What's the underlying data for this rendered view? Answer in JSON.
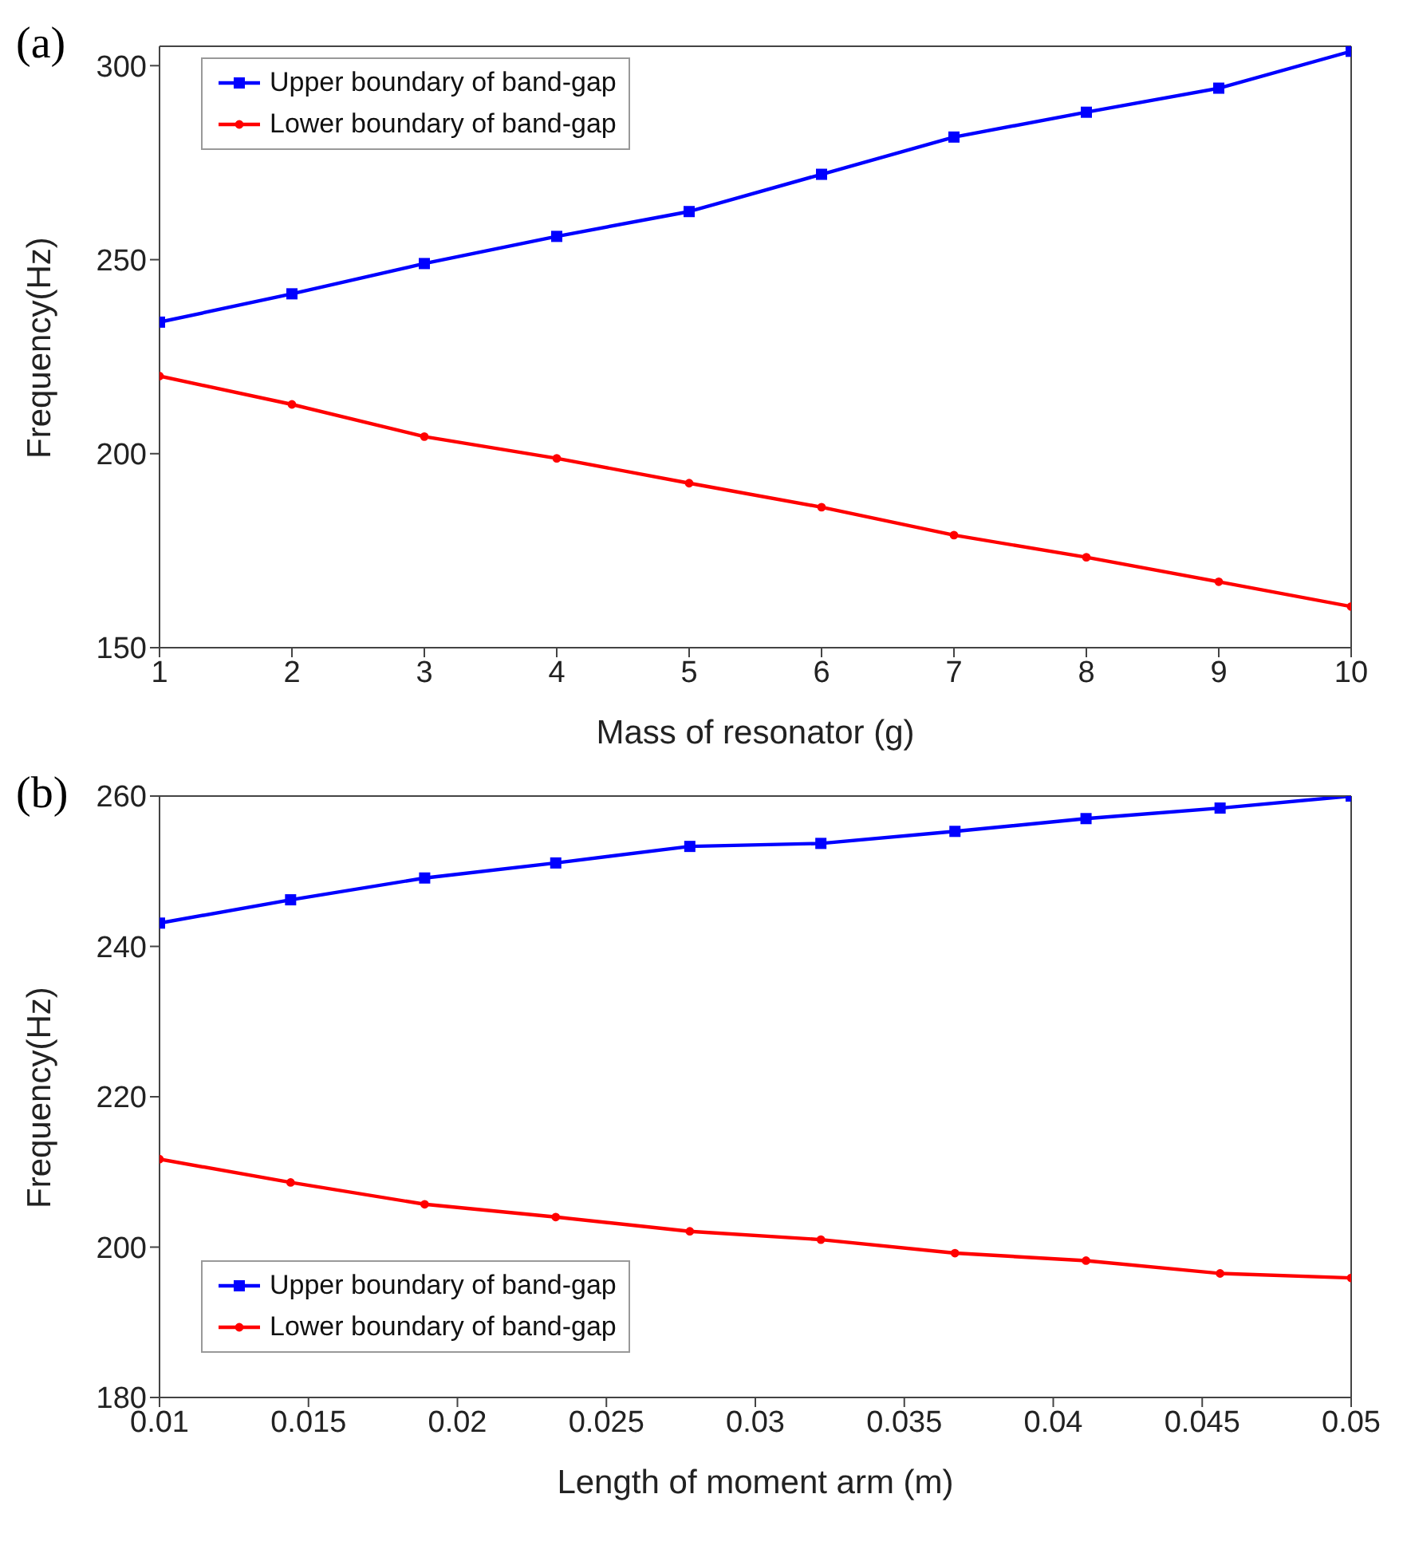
{
  "chart_data": [
    {
      "type": "line",
      "title": "(a)",
      "xlabel": "Mass of resonator (g)",
      "ylabel": "Frequency(Hz)",
      "x": [
        1,
        2,
        3,
        4,
        5,
        6,
        7,
        8,
        9,
        10
      ],
      "xlim": [
        1,
        10
      ],
      "xticks": [
        1,
        2,
        3,
        4,
        5,
        6,
        7,
        8,
        9,
        10
      ],
      "ylim": [
        150,
        305
      ],
      "yticks": [
        150,
        200,
        250,
        300
      ],
      "legend": "top left",
      "series": [
        {
          "name": "Upper boundary of band-gap",
          "color": "#0000ff",
          "marker": "square",
          "values": [
            233.9,
            241.2,
            249,
            256,
            262.4,
            272,
            281.6,
            288,
            294.2,
            303.7
          ]
        },
        {
          "name": "Lower boundary of band-gap",
          "color": "#ff0000",
          "marker": "circle",
          "values": [
            220,
            212.7,
            204.4,
            198.8,
            192.4,
            186.2,
            179,
            173.3,
            167,
            160.6
          ]
        }
      ]
    },
    {
      "type": "line",
      "title": "(b)",
      "xlabel": "Length of moment arm (m)",
      "ylabel": "Frequency(Hz)",
      "x": [
        0.01,
        0.0144,
        0.0189,
        0.0233,
        0.0278,
        0.0322,
        0.0367,
        0.0411,
        0.0456,
        0.05
      ],
      "xlim": [
        0.01,
        0.05
      ],
      "xticks": [
        0.01,
        0.015,
        0.02,
        0.025,
        0.03,
        0.035,
        0.04,
        0.045,
        0.05
      ],
      "ylim": [
        180,
        260
      ],
      "yticks": [
        180,
        200,
        220,
        240,
        260
      ],
      "legend": "bottom left",
      "series": [
        {
          "name": "Upper boundary of band-gap",
          "color": "#0000ff",
          "marker": "square",
          "values": [
            243.1,
            246.2,
            249.1,
            251.1,
            253.3,
            253.7,
            255.3,
            257,
            258.4,
            260
          ]
        },
        {
          "name": "Lower boundary of band-gap",
          "color": "#ff0000",
          "marker": "circle",
          "values": [
            211.7,
            208.6,
            205.7,
            204,
            202.1,
            201,
            199.2,
            198.2,
            196.5,
            195.9
          ]
        }
      ]
    }
  ]
}
